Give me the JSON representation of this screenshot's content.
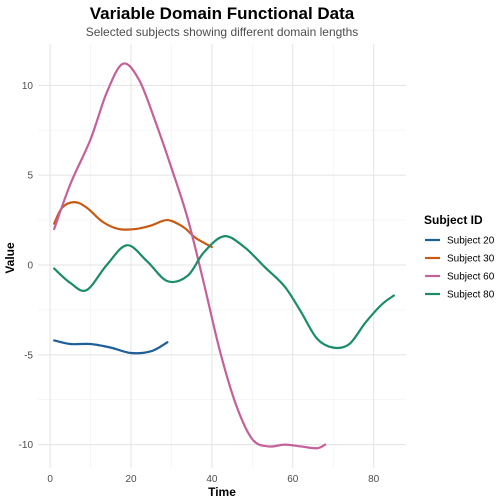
{
  "chart_data": {
    "type": "line",
    "title": "Variable Domain Functional Data",
    "subtitle": "Selected subjects showing different domain lengths",
    "xlabel": "Time",
    "ylabel": "Value",
    "xlim": [
      -3,
      88
    ],
    "ylim": [
      -11.3,
      12.3
    ],
    "x_ticks": [
      0,
      20,
      40,
      60,
      80
    ],
    "y_ticks": [
      -10,
      -5,
      0,
      5,
      10
    ],
    "grid": true,
    "legend": {
      "title": "Subject ID",
      "position": "right"
    },
    "series": [
      {
        "name": "Subject 20",
        "color": "#1f5f99",
        "x": [
          1,
          5,
          10,
          15,
          20,
          25,
          29
        ],
        "y": [
          -4.2,
          -4.4,
          -4.4,
          -4.6,
          -4.9,
          -4.8,
          -4.3
        ]
      },
      {
        "name": "Subject 30",
        "color": "#c85a11",
        "x": [
          1,
          3,
          6,
          9,
          13,
          17,
          21,
          25,
          29,
          33,
          36,
          40
        ],
        "y": [
          2.3,
          3.2,
          3.5,
          3.2,
          2.4,
          2.0,
          2.0,
          2.2,
          2.5,
          2.1,
          1.5,
          1.0
        ]
      },
      {
        "name": "Subject 60",
        "color": "#c4609a",
        "x": [
          1,
          5,
          10,
          14,
          18,
          22,
          26,
          30,
          34,
          38,
          42,
          46,
          50,
          54,
          58,
          62,
          66,
          68
        ],
        "y": [
          2.0,
          4.5,
          7.0,
          9.6,
          11.2,
          10.3,
          8.0,
          5.4,
          2.6,
          -1.0,
          -4.8,
          -7.8,
          -9.7,
          -10.1,
          -10.0,
          -10.1,
          -10.2,
          -10.0
        ]
      },
      {
        "name": "Subject 80",
        "color": "#1b8c6a",
        "x": [
          1,
          5,
          9,
          14,
          19,
          24,
          29,
          34,
          38,
          43,
          48,
          53,
          58,
          62,
          66,
          70,
          74,
          78,
          82,
          85
        ],
        "y": [
          -0.2,
          -1.0,
          -1.4,
          0.0,
          1.1,
          0.2,
          -0.9,
          -0.6,
          0.7,
          1.6,
          1.0,
          -0.1,
          -1.2,
          -2.6,
          -4.1,
          -4.6,
          -4.4,
          -3.2,
          -2.2,
          -1.7
        ]
      }
    ]
  }
}
